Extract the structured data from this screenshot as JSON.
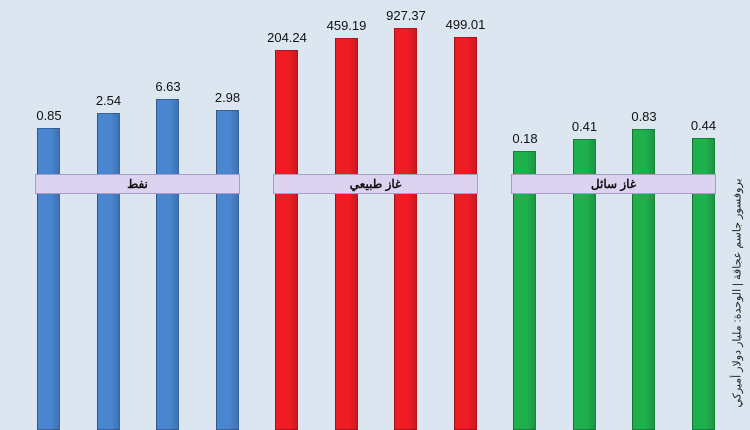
{
  "chart_data": {
    "type": "bar",
    "groups": [
      {
        "name": "نفط",
        "color": "#4a86d0",
        "values": [
          0.85,
          2.54,
          6.63,
          2.98
        ]
      },
      {
        "name": "غاز طبيعي",
        "color": "#f01c24",
        "values": [
          204.24,
          459.19,
          927.37,
          499.01
        ]
      },
      {
        "name": "غاز سائل",
        "color": "#1fb04e",
        "values": [
          0.18,
          0.41,
          0.83,
          0.44
        ]
      }
    ],
    "credit": "بروفسور جاسم عجاقة | الوحدة: مليار دولار أميركي"
  }
}
